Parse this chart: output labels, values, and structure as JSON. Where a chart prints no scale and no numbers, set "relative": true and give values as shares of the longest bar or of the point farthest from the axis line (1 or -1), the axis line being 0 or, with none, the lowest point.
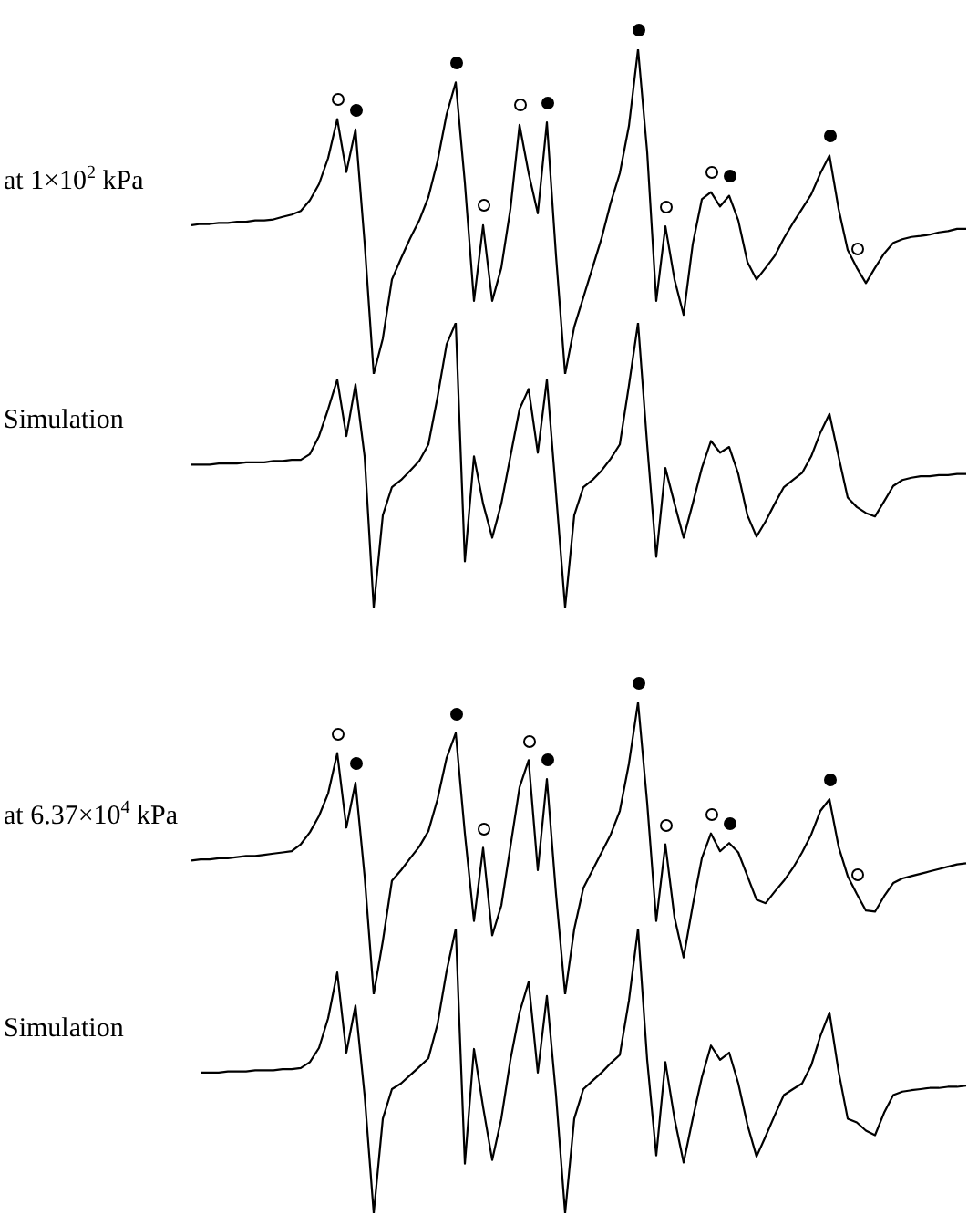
{
  "chart_data": [
    {
      "type": "line",
      "relative": true,
      "marker": "none",
      "line_style": "solid",
      "categories": [
        null,
        null,
        null,
        null,
        null,
        null,
        null,
        null,
        null,
        null,
        null,
        null,
        null,
        null,
        null,
        null,
        null,
        null,
        null,
        null,
        null,
        null,
        null,
        null,
        null,
        null,
        null,
        null,
        null,
        null,
        null,
        null,
        null,
        null,
        null,
        null,
        null,
        null,
        null,
        null,
        null,
        null,
        null,
        null,
        null,
        null,
        null,
        null,
        null,
        null,
        null,
        null,
        null,
        null,
        null,
        null,
        null,
        null,
        null,
        null,
        null,
        null,
        null,
        null,
        null,
        null,
        null,
        null,
        null,
        null,
        null,
        null,
        null,
        null,
        null,
        null,
        null,
        null,
        null,
        null,
        null,
        null,
        null,
        null,
        null,
        null
      ],
      "series": [
        {
          "name": "at 1×10$^{2}$ kPa",
          "color": "#000000",
          "values": [
            0.458,
            0.462,
            0.462,
            0.465,
            0.465,
            0.469,
            0.469,
            0.473,
            0.473,
            0.476,
            0.484,
            0.491,
            0.502,
            0.535,
            0.585,
            0.665,
            0.785,
            0.622,
            0.753,
            0.404,
            0,
            0.109,
            0.291,
            0.356,
            0.418,
            0.473,
            0.545,
            0.655,
            0.8,
            0.898,
            0.589,
            0.225,
            0.458,
            0.225,
            0.327,
            0.509,
            0.767,
            0.618,
            0.495,
            0.775,
            0.364,
            0,
            0.145,
            0.236,
            0.327,
            0.418,
            0.527,
            0.618,
            0.764,
            1,
            0.684,
            0.225,
            0.455,
            0.291,
            0.182,
            0.4,
            0.538,
            0.56,
            0.516,
            0.549,
            0.473,
            0.345,
            0.291,
            0.327,
            0.364,
            0.418,
            0.465,
            0.509,
            0.553,
            0.618,
            0.673,
            0.509,
            0.382,
            0.327,
            0.28,
            0.327,
            0.371,
            0.404,
            0.415,
            0.422,
            0.425,
            0.429,
            0.436,
            0.44,
            0.447,
            0.447
          ]
        }
      ]
    },
    {
      "type": "line",
      "relative": true,
      "marker": "none",
      "line_style": "solid",
      "categories": [
        null,
        null,
        null,
        null,
        null,
        null,
        null,
        null,
        null,
        null,
        null,
        null,
        null,
        null,
        null,
        null,
        null,
        null,
        null,
        null,
        null,
        null,
        null,
        null,
        null,
        null,
        null,
        null,
        null,
        null,
        null,
        null,
        null,
        null,
        null,
        null,
        null,
        null,
        null,
        null,
        null,
        null,
        null,
        null,
        null,
        null,
        null,
        null,
        null,
        null,
        null,
        null,
        null,
        null,
        null,
        null,
        null,
        null,
        null,
        null,
        null,
        null,
        null,
        null,
        null,
        null,
        null,
        null,
        null,
        null,
        null,
        null,
        null,
        null,
        null,
        null,
        null,
        null,
        null,
        null,
        null,
        null,
        null,
        null,
        null,
        null
      ],
      "series": [
        {
          "name": "Simulation",
          "color": "#000000",
          "values": [
            0.502,
            0.502,
            0.502,
            0.506,
            0.506,
            0.506,
            0.51,
            0.51,
            0.51,
            0.515,
            0.515,
            0.519,
            0.519,
            0.539,
            0.602,
            0.697,
            0.801,
            0.602,
            0.784,
            0.531,
            0,
            0.324,
            0.423,
            0.448,
            0.481,
            0.515,
            0.573,
            0.739,
            0.925,
            1,
            0.162,
            0.531,
            0.365,
            0.245,
            0.365,
            0.531,
            0.697,
            0.768,
            0.544,
            0.801,
            0.402,
            0,
            0.324,
            0.423,
            0.448,
            0.481,
            0.523,
            0.573,
            0.78,
            1,
            0.573,
            0.178,
            0.49,
            0.365,
            0.245,
            0.365,
            0.49,
            0.585,
            0.544,
            0.564,
            0.469,
            0.324,
            0.249,
            0.303,
            0.365,
            0.423,
            0.448,
            0.473,
            0.531,
            0.614,
            0.68,
            0.531,
            0.386,
            0.353,
            0.332,
            0.32,
            0.373,
            0.427,
            0.448,
            0.456,
            0.461,
            0.461,
            0.465,
            0.465,
            0.469,
            0.469
          ]
        }
      ]
    },
    {
      "type": "line",
      "relative": true,
      "marker": "none",
      "line_style": "solid",
      "categories": [
        null,
        null,
        null,
        null,
        null,
        null,
        null,
        null,
        null,
        null,
        null,
        null,
        null,
        null,
        null,
        null,
        null,
        null,
        null,
        null,
        null,
        null,
        null,
        null,
        null,
        null,
        null,
        null,
        null,
        null,
        null,
        null,
        null,
        null,
        null,
        null,
        null,
        null,
        null,
        null,
        null,
        null,
        null,
        null,
        null,
        null,
        null,
        null,
        null,
        null,
        null,
        null,
        null,
        null,
        null,
        null,
        null,
        null,
        null,
        null,
        null,
        null,
        null,
        null,
        null,
        null,
        null,
        null,
        null,
        null,
        null,
        null,
        null,
        null,
        null,
        null,
        null,
        null,
        null,
        null,
        null,
        null,
        null,
        null,
        null,
        null
      ],
      "series": [
        {
          "name": "at 6.37×10$^{4}$ kPa",
          "color": "#000000",
          "values": [
            0.458,
            0.462,
            0.462,
            0.466,
            0.466,
            0.47,
            0.474,
            0.474,
            0.478,
            0.482,
            0.486,
            0.49,
            0.514,
            0.555,
            0.611,
            0.688,
            0.826,
            0.571,
            0.725,
            0.405,
            0,
            0.182,
            0.389,
            0.425,
            0.466,
            0.506,
            0.559,
            0.668,
            0.81,
            0.895,
            0.551,
            0.251,
            0.502,
            0.202,
            0.304,
            0.506,
            0.709,
            0.802,
            0.425,
            0.737,
            0.344,
            0,
            0.223,
            0.364,
            0.425,
            0.486,
            0.547,
            0.628,
            0.79,
            1,
            0.656,
            0.251,
            0.514,
            0.263,
            0.126,
            0.304,
            0.466,
            0.551,
            0.49,
            0.518,
            0.486,
            0.405,
            0.324,
            0.312,
            0.352,
            0.389,
            0.433,
            0.486,
            0.547,
            0.628,
            0.668,
            0.506,
            0.405,
            0.344,
            0.287,
            0.283,
            0.336,
            0.381,
            0.397,
            0.405,
            0.413,
            0.421,
            0.429,
            0.437,
            0.445,
            0.449
          ]
        }
      ]
    },
    {
      "type": "line",
      "relative": true,
      "marker": "none",
      "line_style": "solid",
      "categories": [
        null,
        null,
        null,
        null,
        null,
        null,
        null,
        null,
        null,
        null,
        null,
        null,
        null,
        null,
        null,
        null,
        null,
        null,
        null,
        null,
        null,
        null,
        null,
        null,
        null,
        null,
        null,
        null,
        null,
        null,
        null,
        null,
        null,
        null,
        null,
        null,
        null,
        null,
        null,
        null,
        null,
        null,
        null,
        null,
        null,
        null,
        null,
        null,
        null,
        null,
        null,
        null,
        null,
        null,
        null,
        null,
        null,
        null,
        null,
        null,
        null,
        null,
        null,
        null,
        null,
        null,
        null,
        null,
        null,
        null,
        null,
        null,
        null,
        null,
        null,
        null,
        null,
        null,
        null,
        null,
        null,
        null,
        null,
        null,
        null,
        null
      ],
      "series": [
        {
          "name": "Simulation",
          "color": "#000000",
          "values": [
            null,
            0.494,
            0.494,
            0.494,
            0.498,
            0.498,
            0.498,
            0.502,
            0.502,
            0.502,
            0.506,
            0.506,
            0.51,
            0.531,
            0.581,
            0.685,
            0.846,
            0.564,
            0.73,
            0.415,
            0,
            0.332,
            0.436,
            0.456,
            0.485,
            0.514,
            0.544,
            0.664,
            0.851,
            1,
            0.174,
            0.577,
            0.373,
            0.187,
            0.332,
            0.539,
            0.705,
            0.813,
            0.494,
            0.763,
            0.415,
            0,
            0.332,
            0.436,
            0.465,
            0.494,
            0.527,
            0.556,
            0.747,
            1,
            0.539,
            0.203,
            0.531,
            0.332,
            0.178,
            0.332,
            0.477,
            0.589,
            0.539,
            0.564,
            0.456,
            0.311,
            0.199,
            0.27,
            0.344,
            0.415,
            0.436,
            0.456,
            0.519,
            0.622,
            0.705,
            0.498,
            0.332,
            0.319,
            0.29,
            0.274,
            0.353,
            0.415,
            0.427,
            0.432,
            0.436,
            0.44,
            0.44,
            0.444,
            0.444,
            0.448
          ]
        }
      ]
    }
  ]
}
